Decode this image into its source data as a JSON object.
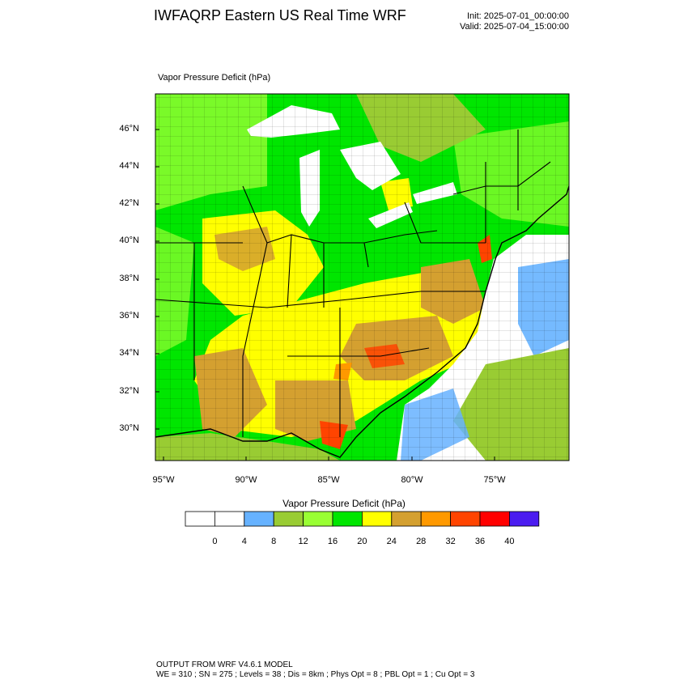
{
  "header": {
    "title": "IWFAQRP Eastern US Real Time WRF",
    "init": "Init: 2025-07-01_00:00:00",
    "valid": "Valid: 2025-07-04_15:00:00"
  },
  "plot": {
    "label": "Vapor Pressure Deficit   (hPa)",
    "lat_labels": [
      "46°N",
      "44°N",
      "42°N",
      "40°N",
      "38°N",
      "36°N",
      "34°N",
      "32°N",
      "30°N"
    ],
    "lon_labels": [
      "95°W",
      "90°W",
      "85°W",
      "80°W",
      "75°W"
    ]
  },
  "colorbar": {
    "title": "Vapor Pressure Deficit  (hPa)",
    "colors": [
      "#ffffff",
      "#ffffff",
      "#66b2ff",
      "#99cc33",
      "#99ff33",
      "#00e600",
      "#ffff00",
      "#d4a030",
      "#ff9900",
      "#ff4400",
      "#ff0000",
      "#4b1cf0"
    ],
    "labels": [
      "0",
      "4",
      "8",
      "12",
      "16",
      "20",
      "24",
      "28",
      "32",
      "36",
      "40"
    ]
  },
  "footer": {
    "line1": "OUTPUT FROM WRF V4.6.1 MODEL",
    "line2": "WE = 310 ; SN = 275 ; Levels = 38 ; Dis = 8km ; Phys Opt = 8 ; PBL Opt = 1 ; Cu Opt = 3"
  }
}
